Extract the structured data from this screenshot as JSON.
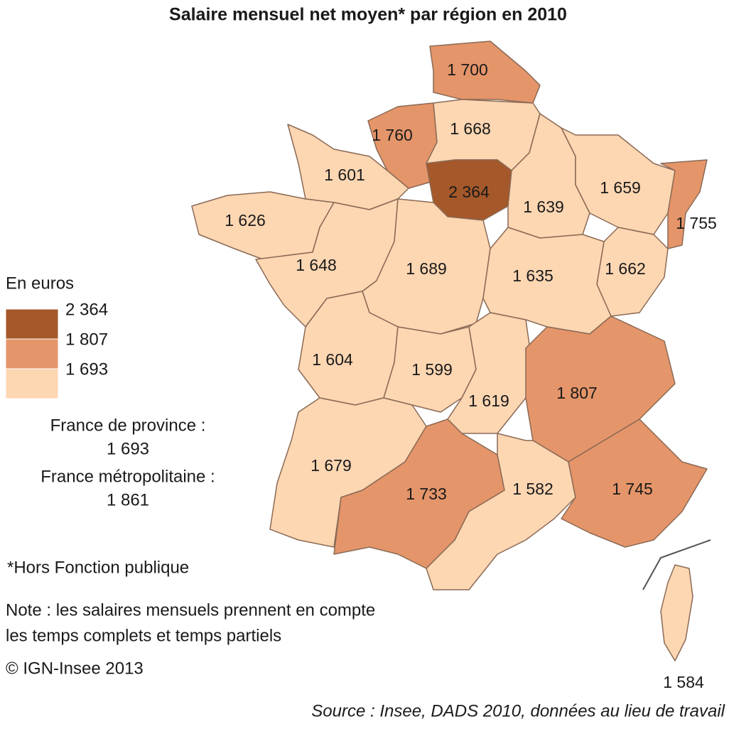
{
  "title": "Salaire mensuel net moyen* par région en 2010",
  "regions": [
    {
      "label": "1 700",
      "color": "#e5956a"
    },
    {
      "label": "1 760",
      "color": "#e5956a"
    },
    {
      "label": "1 668",
      "color": "#fdd6b2"
    },
    {
      "label": "2 364",
      "color": "#a5582a"
    },
    {
      "label": "1 601",
      "color": "#fdd6b2"
    },
    {
      "label": "1 626",
      "color": "#fdd6b2"
    },
    {
      "label": "1 648",
      "color": "#fdd6b2"
    },
    {
      "label": "1 689",
      "color": "#fdd6b2"
    },
    {
      "label": "1 639",
      "color": "#fdd6b2"
    },
    {
      "label": "1 659",
      "color": "#fdd6b2"
    },
    {
      "label": "1 755",
      "color": "#e5956a"
    },
    {
      "label": "1 662",
      "color": "#fdd6b2"
    },
    {
      "label": "1 635",
      "color": "#fdd6b2"
    },
    {
      "label": "1 604",
      "color": "#fdd6b2"
    },
    {
      "label": "1 599",
      "color": "#fdd6b2"
    },
    {
      "label": "1 619",
      "color": "#fdd6b2"
    },
    {
      "label": "1 807",
      "color": "#e5956a"
    },
    {
      "label": "1 679",
      "color": "#fdd6b2"
    },
    {
      "label": "1 733",
      "color": "#e5956a"
    },
    {
      "label": "1 582",
      "color": "#fdd6b2"
    },
    {
      "label": "1 745",
      "color": "#e5956a"
    },
    {
      "label": "1 584",
      "color": "#fdd6b2"
    }
  ],
  "legend": {
    "title": "En euros",
    "breaks": [
      "2 364",
      "1 807",
      "1 693"
    ],
    "colors": [
      "#a5582a",
      "#e5956a",
      "#fdd6b2"
    ]
  },
  "summary": [
    {
      "label": "France de province :",
      "value": "1 693"
    },
    {
      "label": "France métropolitaine :",
      "value": "1 861"
    }
  ],
  "footnote": "*Hors Fonction publique",
  "note": [
    "Note : les salaires mensuels prennent en compte",
    "les temps complets et temps partiels"
  ],
  "copyright": "© IGN-Insee 2013",
  "source": "Source : Insee, DADS 2010, données au lieu de travail"
}
